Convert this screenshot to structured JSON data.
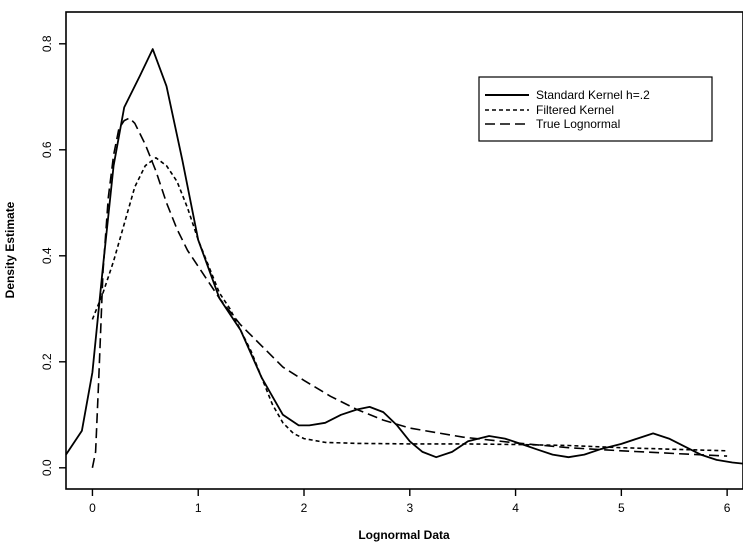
{
  "chart_data": {
    "type": "line",
    "title": "",
    "xlabel": "Lognormal Data",
    "ylabel": "Density Estimate",
    "xlim": [
      -0.25,
      6.15
    ],
    "ylim": [
      -0.04,
      0.86
    ],
    "xticks": [
      0,
      1,
      2,
      3,
      4,
      5,
      6
    ],
    "xtick_labels": [
      "0",
      "1",
      "2",
      "3",
      "4",
      "5",
      "6"
    ],
    "yticks": [
      0.0,
      0.2,
      0.4,
      0.6,
      0.8
    ],
    "ytick_labels": [
      "0.0",
      "0.2",
      "0.4",
      "0.6",
      "0.8"
    ],
    "grid": false,
    "legend_position": "top-right",
    "series": [
      {
        "name": "Standard Kernel h=.2",
        "style": "solid",
        "x": [
          -0.25,
          -0.1,
          0.0,
          0.1,
          0.2,
          0.3,
          0.45,
          0.57,
          0.7,
          0.85,
          1.0,
          1.2,
          1.4,
          1.6,
          1.8,
          1.95,
          2.05,
          2.2,
          2.35,
          2.5,
          2.62,
          2.75,
          2.88,
          3.0,
          3.12,
          3.25,
          3.4,
          3.55,
          3.75,
          3.9,
          4.05,
          4.2,
          4.35,
          4.5,
          4.65,
          4.8,
          5.0,
          5.15,
          5.3,
          5.45,
          5.6,
          5.75,
          5.9,
          6.05,
          6.15
        ],
        "y": [
          0.025,
          0.07,
          0.18,
          0.38,
          0.57,
          0.68,
          0.74,
          0.79,
          0.72,
          0.58,
          0.43,
          0.32,
          0.26,
          0.17,
          0.1,
          0.08,
          0.08,
          0.085,
          0.1,
          0.11,
          0.115,
          0.105,
          0.08,
          0.05,
          0.03,
          0.02,
          0.03,
          0.05,
          0.06,
          0.055,
          0.045,
          0.035,
          0.025,
          0.02,
          0.025,
          0.035,
          0.045,
          0.055,
          0.065,
          0.055,
          0.04,
          0.025,
          0.015,
          0.01,
          0.008
        ]
      },
      {
        "name": "Filtered Kernel",
        "style": "short-dash",
        "x": [
          0.0,
          0.1,
          0.2,
          0.3,
          0.4,
          0.5,
          0.6,
          0.7,
          0.8,
          0.9,
          1.0,
          1.1,
          1.2,
          1.3,
          1.4,
          1.5,
          1.6,
          1.7,
          1.8,
          1.9,
          2.0,
          2.2,
          2.5,
          3.0,
          3.5,
          4.0,
          4.5,
          5.0,
          5.5,
          6.0
        ],
        "y": [
          0.28,
          0.33,
          0.39,
          0.46,
          0.53,
          0.57,
          0.585,
          0.57,
          0.54,
          0.49,
          0.43,
          0.38,
          0.33,
          0.3,
          0.26,
          0.22,
          0.17,
          0.12,
          0.085,
          0.065,
          0.055,
          0.048,
          0.046,
          0.045,
          0.045,
          0.044,
          0.042,
          0.038,
          0.035,
          0.032
        ]
      },
      {
        "name": "True Lognormal",
        "style": "long-dash",
        "x": [
          0.0,
          0.03,
          0.06,
          0.1,
          0.15,
          0.2,
          0.25,
          0.3,
          0.35,
          0.4,
          0.5,
          0.6,
          0.7,
          0.8,
          0.9,
          1.0,
          1.2,
          1.4,
          1.6,
          1.8,
          2.0,
          2.25,
          2.5,
          2.75,
          3.0,
          3.5,
          4.0,
          4.5,
          5.0,
          5.5,
          6.0
        ],
        "y": [
          0.0,
          0.03,
          0.17,
          0.37,
          0.51,
          0.59,
          0.64,
          0.655,
          0.66,
          0.65,
          0.61,
          0.56,
          0.5,
          0.45,
          0.41,
          0.38,
          0.32,
          0.27,
          0.23,
          0.19,
          0.165,
          0.135,
          0.11,
          0.09,
          0.075,
          0.058,
          0.047,
          0.038,
          0.032,
          0.027,
          0.022
        ]
      }
    ]
  }
}
